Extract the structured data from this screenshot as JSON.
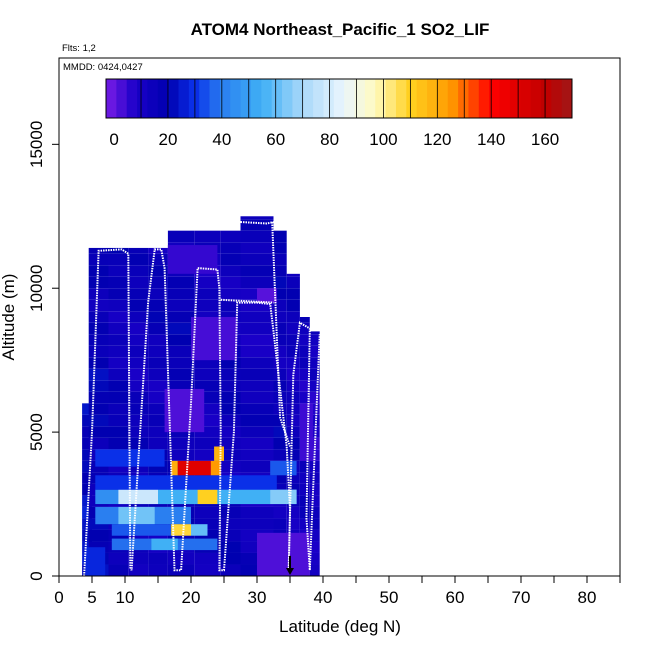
{
  "chart_data": {
    "type": "heatmap",
    "title": "ATOM4 Northeast_Pacific_1 SO2_LIF",
    "flights_label": "Flts: 1,2",
    "dates_label": "MMDD: 0424,0427",
    "xlabel": "Latitude (deg N)",
    "ylabel": "Altitude (m)",
    "xlim": [
      0,
      85
    ],
    "ylim": [
      0,
      18000
    ],
    "x_ticks": [
      0,
      5,
      10,
      20,
      30,
      40,
      50,
      60,
      70,
      80
    ],
    "x_minor_ticks": [
      15,
      25,
      35,
      45,
      55,
      65,
      75,
      85
    ],
    "y_ticks": [
      0,
      5000,
      10000,
      15000
    ],
    "colorbar": {
      "range": [
        -3,
        170
      ],
      "ticks": [
        0,
        20,
        40,
        60,
        80,
        100,
        120,
        140,
        160
      ],
      "stops": [
        {
          "v": -3,
          "c": "#7a1de6"
        },
        {
          "v": 8,
          "c": "#1a00c8"
        },
        {
          "v": 20,
          "c": "#0000b0"
        },
        {
          "v": 30,
          "c": "#0a30e8"
        },
        {
          "v": 40,
          "c": "#2a7ff0"
        },
        {
          "v": 55,
          "c": "#40b0f5"
        },
        {
          "v": 70,
          "c": "#a8d8fa"
        },
        {
          "v": 85,
          "c": "#eaf5fd"
        },
        {
          "v": 97,
          "c": "#fffbc0"
        },
        {
          "v": 110,
          "c": "#ffd020"
        },
        {
          "v": 125,
          "c": "#ff9a00"
        },
        {
          "v": 140,
          "c": "#ff0000"
        },
        {
          "v": 160,
          "c": "#c00000"
        },
        {
          "v": 170,
          "c": "#a01818"
        }
      ]
    },
    "profiles": [
      {
        "lat_range": [
          3.5,
          5.0
        ],
        "alt_range": [
          0,
          6000
        ],
        "value": 22
      },
      {
        "lat_range": [
          4.5,
          7.5
        ],
        "alt_range": [
          0,
          11400
        ],
        "value": 18
      },
      {
        "lat_range": [
          7.5,
          10.5
        ],
        "alt_range": [
          0,
          11400
        ],
        "value": 15
      },
      {
        "lat_range": [
          10.5,
          13.5
        ],
        "alt_range": [
          0,
          11400
        ],
        "value": 14
      },
      {
        "lat_range": [
          13.5,
          16.5
        ],
        "alt_range": [
          0,
          11400
        ],
        "value": 15
      },
      {
        "lat_range": [
          16.5,
          20.5
        ],
        "alt_range": [
          0,
          12000
        ],
        "value": 16
      },
      {
        "lat_range": [
          20.5,
          24.5
        ],
        "alt_range": [
          0,
          12000
        ],
        "value": 14
      },
      {
        "lat_range": [
          24.5,
          27.5
        ],
        "alt_range": [
          0,
          12000
        ],
        "value": 15
      },
      {
        "lat_range": [
          27.5,
          32.5
        ],
        "alt_range": [
          0,
          12500
        ],
        "value": 13
      },
      {
        "lat_range": [
          32.5,
          34.5
        ],
        "alt_range": [
          0,
          12000
        ],
        "value": 16
      },
      {
        "lat_range": [
          34.5,
          36.5
        ],
        "alt_range": [
          0,
          10500
        ],
        "value": 14
      },
      {
        "lat_range": [
          36.5,
          38.0
        ],
        "alt_range": [
          0,
          9000
        ],
        "value": 12
      },
      {
        "lat_range": [
          38.0,
          39.5
        ],
        "alt_range": [
          0,
          8500
        ],
        "value": 10
      }
    ],
    "features": [
      {
        "lat_range": [
          5.5,
          36.0
        ],
        "alt_range": [
          2500,
          3000
        ],
        "value": 45
      },
      {
        "lat_range": [
          9.0,
          15.0
        ],
        "alt_range": [
          2500,
          3000
        ],
        "value": 78
      },
      {
        "lat_range": [
          15.0,
          21.0
        ],
        "alt_range": [
          2500,
          3000
        ],
        "value": 55
      },
      {
        "lat_range": [
          21.0,
          24.0
        ],
        "alt_range": [
          2500,
          3000
        ],
        "value": 110
      },
      {
        "lat_range": [
          24.0,
          32.0
        ],
        "alt_range": [
          2500,
          3000
        ],
        "value": 55
      },
      {
        "lat_range": [
          32.0,
          36.0
        ],
        "alt_range": [
          2500,
          3000
        ],
        "value": 65
      },
      {
        "lat_range": [
          5.5,
          33.0
        ],
        "alt_range": [
          3000,
          3500
        ],
        "value": 30
      },
      {
        "lat_range": [
          17.0,
          18.0
        ],
        "alt_range": [
          3500,
          4000
        ],
        "value": 120
      },
      {
        "lat_range": [
          18.0,
          23.0
        ],
        "alt_range": [
          3500,
          4000
        ],
        "value": 150
      },
      {
        "lat_range": [
          23.0,
          24.5
        ],
        "alt_range": [
          3500,
          4000
        ],
        "value": 125
      },
      {
        "lat_range": [
          23.5,
          25.0
        ],
        "alt_range": [
          4000,
          4500
        ],
        "value": 118
      },
      {
        "lat_range": [
          5.5,
          20.0
        ],
        "alt_range": [
          1800,
          2400
        ],
        "value": 40
      },
      {
        "lat_range": [
          9.0,
          14.5
        ],
        "alt_range": [
          1800,
          2400
        ],
        "value": 62
      },
      {
        "lat_range": [
          8.0,
          18.0
        ],
        "alt_range": [
          1400,
          1800
        ],
        "value": 35
      },
      {
        "lat_range": [
          17.0,
          20.0
        ],
        "alt_range": [
          1400,
          1800
        ],
        "value": 108
      },
      {
        "lat_range": [
          20.0,
          22.5
        ],
        "alt_range": [
          1400,
          1800
        ],
        "value": 60
      },
      {
        "lat_range": [
          8.0,
          24.0
        ],
        "alt_range": [
          900,
          1300
        ],
        "value": 38
      },
      {
        "lat_range": [
          14.0,
          18.0
        ],
        "alt_range": [
          900,
          1300
        ],
        "value": 55
      },
      {
        "lat_range": [
          5.5,
          16.0
        ],
        "alt_range": [
          3800,
          4400
        ],
        "value": 30
      },
      {
        "lat_range": [
          32.0,
          36.0
        ],
        "alt_range": [
          3500,
          4000
        ],
        "value": 35
      },
      {
        "lat_range": [
          16.0,
          22.0
        ],
        "alt_range": [
          5000,
          6500
        ],
        "value": 2
      },
      {
        "lat_range": [
          20.0,
          27.0
        ],
        "alt_range": [
          7500,
          9000
        ],
        "value": 3
      },
      {
        "lat_range": [
          30.0,
          33.0
        ],
        "alt_range": [
          9500,
          10000
        ],
        "value": 1
      },
      {
        "lat_range": [
          16.5,
          24.0
        ],
        "alt_range": [
          10500,
          11500
        ],
        "value": 5
      },
      {
        "lat_range": [
          4.0,
          7.0
        ],
        "alt_range": [
          0,
          1000
        ],
        "value": 28
      },
      {
        "lat_range": [
          30.0,
          38.0
        ],
        "alt_range": [
          0,
          1500
        ],
        "value": 2
      },
      {
        "lat_range": [
          36.5,
          38.5
        ],
        "alt_range": [
          4000,
          6000
        ],
        "value": 4
      }
    ],
    "flight_track": [
      [
        3.8,
        0
      ],
      [
        5.0,
        5000
      ],
      [
        6.0,
        11300
      ],
      [
        9.5,
        11350
      ],
      [
        10.5,
        11200
      ],
      [
        10.8,
        300
      ],
      [
        11.0,
        200
      ],
      [
        13.5,
        9500
      ],
      [
        14.5,
        11350
      ],
      [
        15.5,
        11350
      ],
      [
        16.0,
        10700
      ],
      [
        17.5,
        200
      ],
      [
        18.5,
        200
      ],
      [
        20.0,
        6000
      ],
      [
        21.0,
        10700
      ],
      [
        24.0,
        10650
      ],
      [
        24.3,
        10000
      ],
      [
        24.5,
        5000
      ],
      [
        24.3,
        200
      ],
      [
        25.0,
        200
      ],
      [
        26.5,
        5000
      ],
      [
        27.0,
        9500
      ],
      [
        30.0,
        9500
      ],
      [
        32.0,
        9450
      ],
      [
        32.5,
        8500
      ],
      [
        34.5,
        4500
      ],
      [
        35.0,
        2300
      ],
      [
        34.8,
        200
      ],
      [
        35.5,
        7000
      ],
      [
        36.5,
        8800
      ],
      [
        38.0,
        8600
      ],
      [
        37.5,
        2000
      ],
      [
        38.0,
        200
      ],
      [
        38.5,
        3000
      ],
      [
        39.5,
        8400
      ]
    ],
    "track_segments": [
      [
        [
          24.5,
          9600
        ],
        [
          32.5,
          9500
        ]
      ],
      [
        [
          27.5,
          12300
        ],
        [
          31.5,
          12250
        ],
        [
          32.5,
          12300
        ]
      ],
      [
        [
          32.3,
          12300
        ],
        [
          33.5,
          5500
        ],
        [
          35.0,
          4500
        ]
      ]
    ],
    "arrow": {
      "lat": 35.0,
      "alt_from": 700,
      "alt_to": 0
    },
    "colors": {
      "track": "#ffffff",
      "arrow": "#000000",
      "axis": "#000000"
    }
  }
}
